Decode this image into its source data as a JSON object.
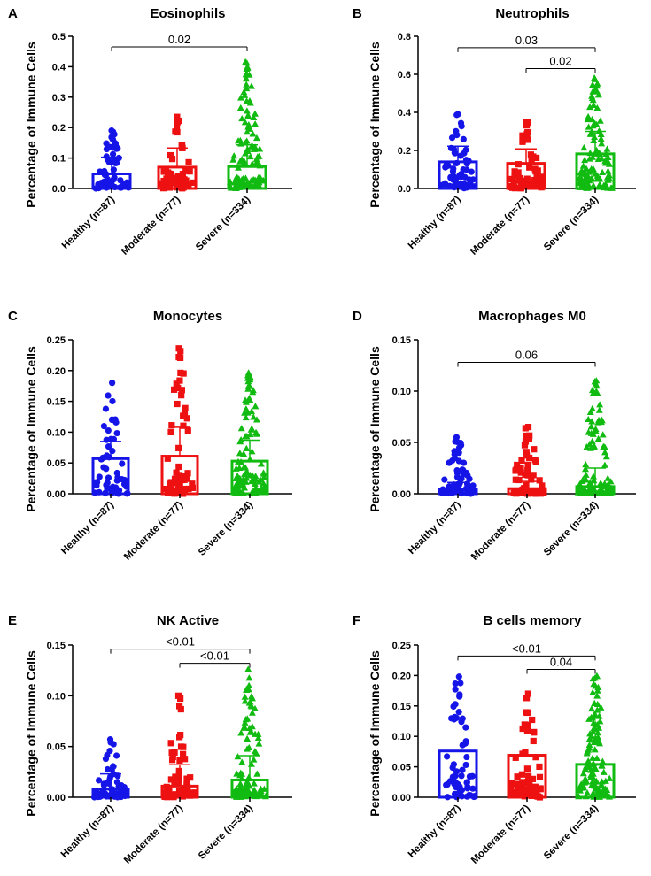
{
  "figure": {
    "ylabel": "Percentage of Immune Cells",
    "groups": [
      "Healthy (n=87)",
      "Moderate (n=77)",
      "Severe (n=334)"
    ],
    "group_colors": [
      "#1515e8",
      "#ee1111",
      "#11bb11"
    ],
    "group_markers": [
      "circle",
      "square",
      "triangle"
    ]
  },
  "chart_data": [
    {
      "type": "bar",
      "letter": "A",
      "title": "Eosinophils",
      "ylabel": "Percentage of Immune Cells",
      "categories": [
        "Healthy (n=87)",
        "Moderate (n=77)",
        "Severe (n=334)"
      ],
      "ylim": [
        0,
        0.5
      ],
      "yticks": [
        0.0,
        0.1,
        0.2,
        0.3,
        0.4,
        0.5
      ],
      "ytick_labels": [
        "0.0",
        "0.1",
        "0.2",
        "0.3",
        "0.4",
        "0.5"
      ],
      "means": [
        0.048,
        0.07,
        0.072
      ],
      "sd_upper": [
        0.103,
        0.133,
        0.143
      ],
      "max_values": [
        0.19,
        0.235,
        0.415
      ],
      "comparisons": [
        {
          "from": 0,
          "to": 2,
          "label": "0.02",
          "y": 0.465
        }
      ]
    },
    {
      "type": "bar",
      "letter": "B",
      "title": "Neutrophils",
      "ylabel": "Percentage of Immune Cells",
      "categories": [
        "Healthy (n=87)",
        "Moderate (n=77)",
        "Severe (n=334)"
      ],
      "ylim": [
        0,
        0.8
      ],
      "yticks": [
        0.0,
        0.2,
        0.4,
        0.6,
        0.8
      ],
      "ytick_labels": [
        "0.0",
        "0.2",
        "0.4",
        "0.6",
        "0.8"
      ],
      "means": [
        0.14,
        0.132,
        0.182
      ],
      "sd_upper": [
        0.222,
        0.208,
        0.3
      ],
      "max_values": [
        0.39,
        0.35,
        0.58
      ],
      "comparisons": [
        {
          "from": 0,
          "to": 2,
          "label": "0.03",
          "y": 0.74
        },
        {
          "from": 1,
          "to": 2,
          "label": "0.02",
          "y": 0.63
        }
      ]
    },
    {
      "type": "bar",
      "letter": "C",
      "title": "Monocytes",
      "ylabel": "Percentage of Immune Cells",
      "categories": [
        "Healthy (n=87)",
        "Moderate (n=77)",
        "Severe (n=334)"
      ],
      "ylim": [
        0,
        0.25
      ],
      "yticks": [
        0.0,
        0.05,
        0.1,
        0.15,
        0.2,
        0.25
      ],
      "ytick_labels": [
        "0.00",
        "0.05",
        "0.10",
        "0.15",
        "0.20",
        "0.25"
      ],
      "means": [
        0.057,
        0.061,
        0.053
      ],
      "sd_upper": [
        0.085,
        0.108,
        0.087
      ],
      "max_values": [
        0.18,
        0.236,
        0.196
      ],
      "comparisons": []
    },
    {
      "type": "bar",
      "letter": "D",
      "title": "Macrophages M0",
      "ylabel": "Percentage of Immune Cells",
      "categories": [
        "Healthy (n=87)",
        "Moderate (n=77)",
        "Severe (n=334)"
      ],
      "ylim": [
        0,
        0.15
      ],
      "yticks": [
        0.0,
        0.05,
        0.1,
        0.15
      ],
      "ytick_labels": [
        "0.00",
        "0.05",
        "0.10",
        "0.15"
      ],
      "means": [
        0.004,
        0.005,
        0.007
      ],
      "sd_upper": [
        0.011,
        0.012,
        0.025
      ],
      "max_values": [
        0.055,
        0.065,
        0.11
      ],
      "comparisons": [
        {
          "from": 0,
          "to": 2,
          "label": "0.06",
          "y": 0.128
        }
      ]
    },
    {
      "type": "bar",
      "letter": "E",
      "title": "NK Active",
      "ylabel": "Percentage of Immune Cells",
      "categories": [
        "Healthy (n=87)",
        "Moderate (n=77)",
        "Severe (n=334)"
      ],
      "ylim": [
        0,
        0.15
      ],
      "yticks": [
        0.0,
        0.05,
        0.1,
        0.15
      ],
      "ytick_labels": [
        "0.00",
        "0.05",
        "0.10",
        "0.15"
      ],
      "means": [
        0.008,
        0.011,
        0.017
      ],
      "sd_upper": [
        0.023,
        0.032,
        0.041
      ],
      "max_values": [
        0.057,
        0.1,
        0.126
      ],
      "comparisons": [
        {
          "from": 0,
          "to": 2,
          "label": "<0.01",
          "y": 0.146
        },
        {
          "from": 1,
          "to": 2,
          "label": "<0.01",
          "y": 0.132
        }
      ]
    },
    {
      "type": "bar",
      "letter": "F",
      "title": "B cells memory",
      "ylabel": "Percentage of Immune Cells",
      "categories": [
        "Healthy (n=87)",
        "Moderate (n=77)",
        "Severe (n=334)"
      ],
      "ylim": [
        0,
        0.25
      ],
      "yticks": [
        0.0,
        0.05,
        0.1,
        0.15,
        0.2,
        0.25
      ],
      "ytick_labels": [
        "0.00",
        "0.05",
        "0.10",
        "0.15",
        "0.20",
        "0.25"
      ],
      "means": [
        0.076,
        0.069,
        0.054
      ],
      "sd_upper": [
        0.076,
        0.069,
        0.054
      ],
      "max_values": [
        0.198,
        0.17,
        0.199
      ],
      "comparisons": [
        {
          "from": 0,
          "to": 2,
          "label": "<0.01",
          "y": 0.232
        },
        {
          "from": 1,
          "to": 2,
          "label": "0.04",
          "y": 0.21
        }
      ]
    }
  ]
}
